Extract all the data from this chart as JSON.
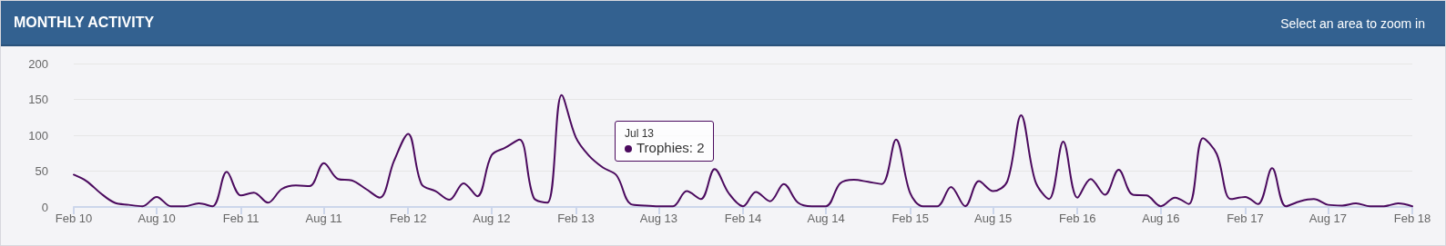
{
  "chart_data": {
    "type": "line",
    "title": "MONTHLY ACTIVITY",
    "subtitle": "Select an area to zoom in",
    "x": [
      "2010-02",
      "2010-03",
      "2010-04",
      "2010-05",
      "2010-06",
      "2010-07",
      "2010-08",
      "2010-09",
      "2010-10",
      "2010-11",
      "2010-12",
      "2011-01",
      "2011-02",
      "2011-03",
      "2011-04",
      "2011-05",
      "2011-06",
      "2011-07",
      "2011-08",
      "2011-09",
      "2011-10",
      "2011-11",
      "2011-12",
      "2012-01",
      "2012-02",
      "2012-03",
      "2012-04",
      "2012-05",
      "2012-06",
      "2012-07",
      "2012-08",
      "2012-09",
      "2012-10",
      "2012-11",
      "2012-12",
      "2013-01",
      "2013-02",
      "2013-03",
      "2013-04",
      "2013-05",
      "2013-06",
      "2013-07",
      "2013-08",
      "2013-09",
      "2013-10",
      "2013-11",
      "2013-12",
      "2014-01",
      "2014-02",
      "2014-03",
      "2014-04",
      "2014-05",
      "2014-06",
      "2014-07",
      "2014-08",
      "2014-09",
      "2014-10",
      "2014-11",
      "2014-12",
      "2015-01",
      "2015-02",
      "2015-03",
      "2015-04",
      "2015-05",
      "2015-06",
      "2015-07",
      "2015-08",
      "2015-09",
      "2015-10",
      "2015-11",
      "2015-12",
      "2016-01",
      "2016-02",
      "2016-03",
      "2016-04",
      "2016-05",
      "2016-06",
      "2016-07",
      "2016-08",
      "2016-09",
      "2016-10",
      "2016-11",
      "2016-12",
      "2017-01",
      "2017-02",
      "2017-03",
      "2017-04",
      "2017-05",
      "2017-06",
      "2017-07",
      "2017-08",
      "2017-09",
      "2017-10",
      "2017-11",
      "2017-12",
      "2018-01",
      "2018-02"
    ],
    "series": [
      {
        "color": "#4b0a5e",
        "values": [
          45,
          36,
          19,
          6,
          3,
          1,
          14,
          1,
          1,
          5,
          1,
          49,
          16,
          20,
          6,
          25,
          30,
          29,
          61,
          39,
          37,
          25,
          13,
          64,
          102,
          32,
          22,
          10,
          33,
          15,
          72,
          83,
          94,
          13,
          6,
          156,
          97,
          72,
          55,
          44,
          4,
          2,
          1,
          1,
          22,
          11,
          53,
          19,
          1,
          21,
          8,
          32,
          6,
          1,
          1,
          33,
          38,
          35,
          32,
          94,
          19,
          1,
          1,
          28,
          1,
          36,
          22,
          36,
          128,
          36,
          11,
          91,
          13,
          39,
          17,
          52,
          17,
          16,
          1,
          13,
          4,
          96,
          74,
          11,
          14,
          4,
          54,
          1,
          8,
          11,
          3,
          2,
          5,
          1,
          1,
          5,
          1
        ]
      }
    ],
    "xlim": [
      "2010-02",
      "2018-02"
    ],
    "xticks": [
      {
        "value": "2010-02",
        "label": "Feb 10"
      },
      {
        "value": "2010-08",
        "label": "Aug 10"
      },
      {
        "value": "2011-02",
        "label": "Feb 11"
      },
      {
        "value": "2011-08",
        "label": "Aug 11"
      },
      {
        "value": "2012-02",
        "label": "Feb 12"
      },
      {
        "value": "2012-08",
        "label": "Aug 12"
      },
      {
        "value": "2013-02",
        "label": "Feb 13"
      },
      {
        "value": "2013-08",
        "label": "Aug 13"
      },
      {
        "value": "2014-02",
        "label": "Feb 14"
      },
      {
        "value": "2014-08",
        "label": "Aug 14"
      },
      {
        "value": "2015-02",
        "label": "Feb 15"
      },
      {
        "value": "2015-08",
        "label": "Aug 15"
      },
      {
        "value": "2016-02",
        "label": "Feb 16"
      },
      {
        "value": "2016-08",
        "label": "Aug 16"
      },
      {
        "value": "2017-02",
        "label": "Feb 17"
      },
      {
        "value": "2017-08",
        "label": "Aug 17"
      },
      {
        "value": "2018-02",
        "label": "Feb 18"
      }
    ],
    "ylim": [
      0,
      200
    ],
    "yticks": [
      0,
      50,
      100,
      150,
      200
    ],
    "grid": "y",
    "marker": "none",
    "line_style": "solid",
    "annotations": [
      "Jul 13",
      "Trophies: 2"
    ]
  }
}
